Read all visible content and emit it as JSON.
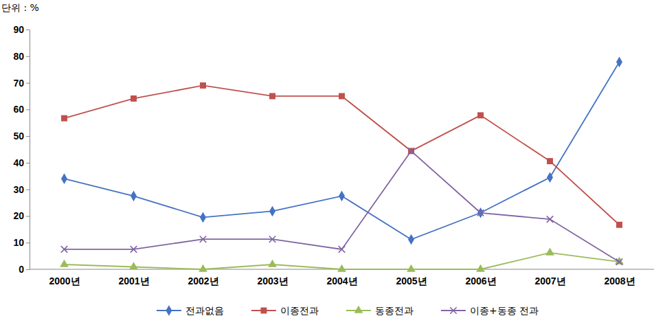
{
  "chart_data": {
    "type": "line",
    "y_label": "단위 : %",
    "categories": [
      "2000년",
      "2001년",
      "2002년",
      "2003년",
      "2004년",
      "2005년",
      "2006년",
      "2007년",
      "2008년"
    ],
    "series": [
      {
        "name": "전과없음",
        "color": "#4472c4",
        "marker": "diamond",
        "values": [
          34,
          27.5,
          19.5,
          21.8,
          27.5,
          11.2,
          21.2,
          34.5,
          77.8
        ]
      },
      {
        "name": "이종전과",
        "color": "#c0504d",
        "marker": "square",
        "values": [
          56.7,
          64.1,
          69,
          65,
          65,
          44.4,
          57.8,
          40.6,
          16.7
        ]
      },
      {
        "name": "동종전과",
        "color": "#9bbb59",
        "marker": "triangle",
        "values": [
          1.8,
          0.9,
          0,
          1.8,
          0,
          0,
          0,
          6.2,
          2.8
        ]
      },
      {
        "name": "이종+동종 전과",
        "color": "#8064a2",
        "marker": "x",
        "values": [
          7.5,
          7.5,
          11.3,
          11.3,
          7.5,
          44.4,
          21.2,
          18.8,
          2.8
        ]
      }
    ],
    "ylim": [
      0,
      90
    ],
    "yticks": [
      0,
      10,
      20,
      30,
      40,
      50,
      60,
      70,
      80,
      90
    ],
    "grid": false,
    "legend": "bottom"
  }
}
